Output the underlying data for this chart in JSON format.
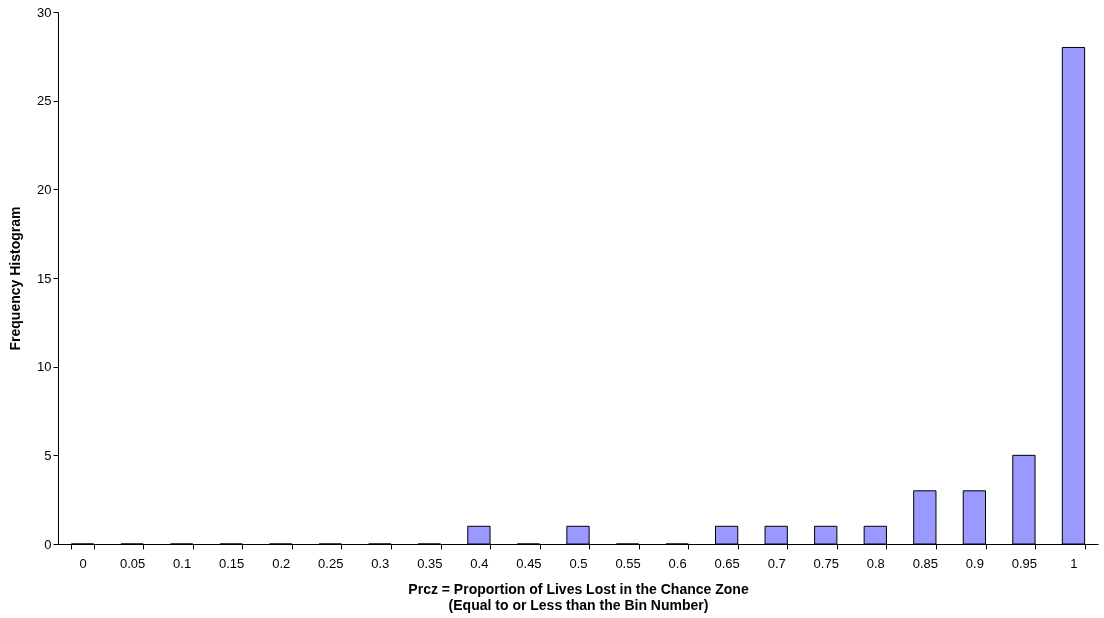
{
  "chart_data": {
    "type": "bar",
    "xlabel": "Prcz = Proportion of Lives Lost in the Chance Zone\n(Equal to or Less than the Bin Number)",
    "ylabel": "Frequency Histogram",
    "categories": [
      "0",
      "0.05",
      "0.1",
      "0.15",
      "0.2",
      "0.25",
      "0.3",
      "0.35",
      "0.4",
      "0.45",
      "0.5",
      "0.55",
      "0.6",
      "0.65",
      "0.7",
      "0.75",
      "0.8",
      "0.85",
      "0.9",
      "0.95",
      "1"
    ],
    "values": [
      0,
      0,
      0,
      0,
      0,
      0,
      0,
      0,
      1,
      0,
      1,
      0,
      0,
      1,
      1,
      1,
      1,
      3,
      3,
      5,
      28
    ],
    "color": "#9999ff",
    "ylim": [
      0,
      30
    ],
    "yticks": [
      0,
      5,
      10,
      15,
      20,
      25,
      30
    ],
    "grid": false
  }
}
